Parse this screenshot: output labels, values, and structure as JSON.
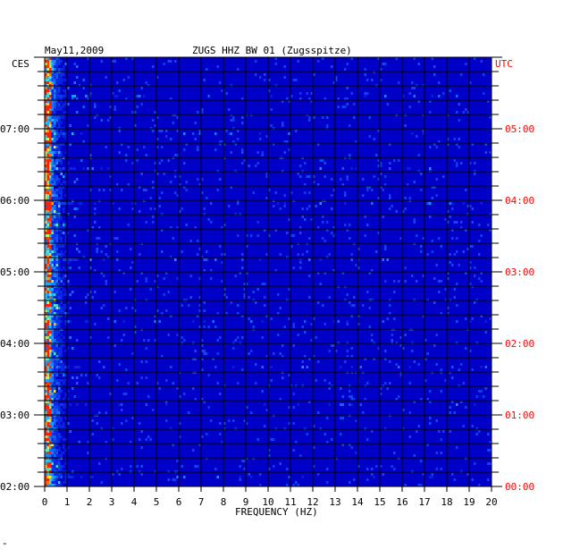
{
  "chart_data": {
    "type": "heatmap",
    "title": "ZUGS HHZ BW 01 (Zugsspitze)",
    "date": "May11,2009",
    "xlabel": "FREQUENCY (HZ)",
    "x_ticks": [
      "0",
      "1",
      "2",
      "3",
      "4",
      "5",
      "6",
      "7",
      "8",
      "9",
      "10",
      "11",
      "12",
      "13",
      "14",
      "15",
      "16",
      "17",
      "18",
      "19",
      "20"
    ],
    "xlim": [
      0,
      20
    ],
    "left_axis_label": "CES",
    "right_axis_label": "UTC",
    "left_ticks": [
      "07:00",
      "06:00",
      "05:00",
      "04:00",
      "03:00",
      "02:00"
    ],
    "right_ticks": [
      "05:00",
      "04:00",
      "03:00",
      "02:00",
      "01:00",
      "00:00"
    ],
    "time_range_local": [
      "02:00",
      "07:30"
    ],
    "colors": {
      "background": "#0000c8",
      "low": "#0a2ee6",
      "mid": "#1ea0ff",
      "high": "#ffee22",
      "peak": "#ff2200",
      "utc_labels": "#ff0000",
      "grid": "#000000"
    }
  },
  "footer_mark": "\""
}
